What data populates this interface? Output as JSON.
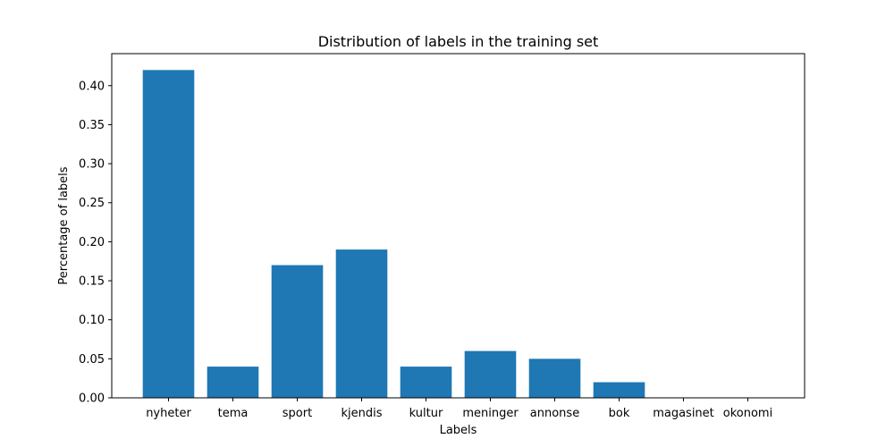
{
  "chart_data": {
    "type": "bar",
    "title": "Distribution of labels in the training set",
    "xlabel": "Labels",
    "ylabel": "Percentage of labels",
    "categories": [
      "nyheter",
      "tema",
      "sport",
      "kjendis",
      "kultur",
      "meninger",
      "annonse",
      "bok",
      "magasinet",
      "okonomi"
    ],
    "values": [
      0.42,
      0.04,
      0.17,
      0.19,
      0.04,
      0.06,
      0.05,
      0.02,
      0.0,
      0.0
    ],
    "ylim": [
      0,
      0.441
    ],
    "yticks": [
      "0.00",
      "0.05",
      "0.10",
      "0.15",
      "0.20",
      "0.25",
      "0.30",
      "0.35",
      "0.40"
    ],
    "bar_color": "#1f77b4",
    "grid": false,
    "legend": false
  }
}
